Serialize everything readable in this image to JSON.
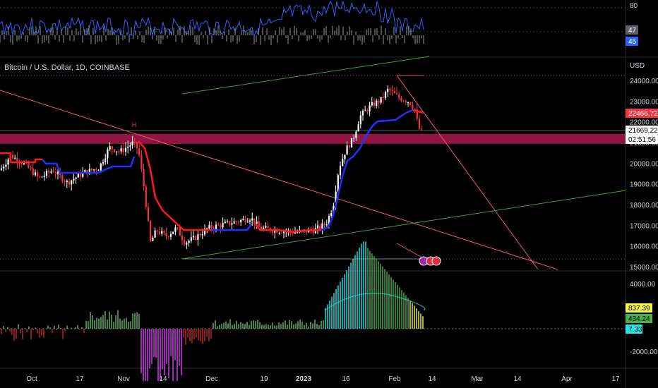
{
  "symbol_title": "Bitcoin / U.S. Dollar, 1D, COINBASE",
  "currency_label": "USD",
  "pattern_marker": "H",
  "rsi_pane": {
    "axis_label": "80",
    "tag_a": "47",
    "tag_b": "45",
    "colors": {
      "line": "#2962ff",
      "tag_a": "#5d606b",
      "tag_b": "#2962ff"
    }
  },
  "price_pane": {
    "y_ticks": [
      "24000.00",
      "23000.00",
      "22000.00",
      "21000.00",
      "20000.00",
      "19000.00",
      "18000.00",
      "17000.00",
      "16000.00",
      "15000.00"
    ],
    "tag_supertrend": "22466.72",
    "tag_last": "21669.22",
    "tag_countdown": "02:51:56",
    "colors": {
      "up": "#ffffff",
      "down": "#f23645",
      "trend_up": "#2130ff",
      "trend_down": "#ff1a1a",
      "zone": "#a0174a",
      "trendline": "#f0576b",
      "channel": "#3aa62a"
    }
  },
  "osc_pane": {
    "y_ticks": [
      "4000.00",
      "-2000.00"
    ],
    "tag_a": "837.39",
    "tag_b": "434.24",
    "tag_c": "7.33",
    "colors": {
      "tag_a": "#f5f542",
      "tag_b": "#4caf50",
      "tag_c": "#26e6e6"
    }
  },
  "x_ticks": [
    "Oct",
    "17",
    "Nov",
    "14",
    "Dec",
    "19",
    "2023",
    "16",
    "Feb",
    "14",
    "Mar",
    "14",
    "Apr",
    "17"
  ],
  "chart_data": {
    "type": "candlestick",
    "title": "Bitcoin / U.S. Dollar, 1D, COINBASE",
    "ylim": [
      14900,
      24800
    ],
    "x": [
      "2022-09-26",
      "2023-04-20"
    ],
    "series": [
      {
        "name": "BTCUSD",
        "values": [
          {
            "x": "2022-09-26",
            "o": 19000,
            "h": 19300,
            "l": 18800,
            "c": 19200
          },
          {
            "x": "2022-10-10",
            "o": 19200,
            "h": 19500,
            "l": 18300,
            "c": 19100
          },
          {
            "x": "2022-10-25",
            "o": 19300,
            "h": 20500,
            "l": 19200,
            "c": 20300
          },
          {
            "x": "2022-11-05",
            "o": 20900,
            "h": 21400,
            "l": 20800,
            "c": 21200
          },
          {
            "x": "2022-11-08",
            "o": 20500,
            "h": 20700,
            "l": 17200,
            "c": 18500
          },
          {
            "x": "2022-11-09",
            "o": 18500,
            "h": 18600,
            "l": 15700,
            "c": 15900
          },
          {
            "x": "2022-11-21",
            "o": 16300,
            "h": 16400,
            "l": 15500,
            "c": 16000
          },
          {
            "x": "2022-12-14",
            "o": 17300,
            "h": 18400,
            "l": 17100,
            "c": 17500
          },
          {
            "x": "2022-12-31",
            "o": 16700,
            "h": 16800,
            "l": 16500,
            "c": 16600
          },
          {
            "x": "2023-01-12",
            "o": 18300,
            "h": 19100,
            "l": 18200,
            "c": 19000
          },
          {
            "x": "2023-01-14",
            "o": 19900,
            "h": 21300,
            "l": 19800,
            "c": 20900
          },
          {
            "x": "2023-01-25",
            "o": 22600,
            "h": 23200,
            "l": 22400,
            "c": 23000
          },
          {
            "x": "2023-02-02",
            "o": 23800,
            "h": 24200,
            "l": 23500,
            "c": 23500
          },
          {
            "x": "2023-02-09",
            "o": 22900,
            "h": 23100,
            "l": 21800,
            "c": 21800
          },
          {
            "x": "2023-02-10",
            "o": 21800,
            "h": 21900,
            "l": 21600,
            "c": 21670
          }
        ]
      }
    ],
    "supertrend": [
      {
        "x": "2022-10-01",
        "v": 20000
      },
      {
        "x": "2022-10-20",
        "v": 19600
      },
      {
        "x": "2022-11-05",
        "v": 20000
      },
      {
        "x": "2022-11-08",
        "v": 20700
      },
      {
        "x": "2022-11-20",
        "v": 17000
      },
      {
        "x": "2022-12-10",
        "v": 16900
      },
      {
        "x": "2023-01-05",
        "v": 16800
      },
      {
        "x": "2023-01-14",
        "v": 18500
      },
      {
        "x": "2023-01-20",
        "v": 20900
      },
      {
        "x": "2023-02-01",
        "v": 22100
      },
      {
        "x": "2023-02-05",
        "v": 22500
      },
      {
        "x": "2023-02-10",
        "v": 22467
      }
    ],
    "resistance_zone": [
      20970,
      21450
    ],
    "osc_ylim": [
      -2800,
      4800
    ]
  }
}
